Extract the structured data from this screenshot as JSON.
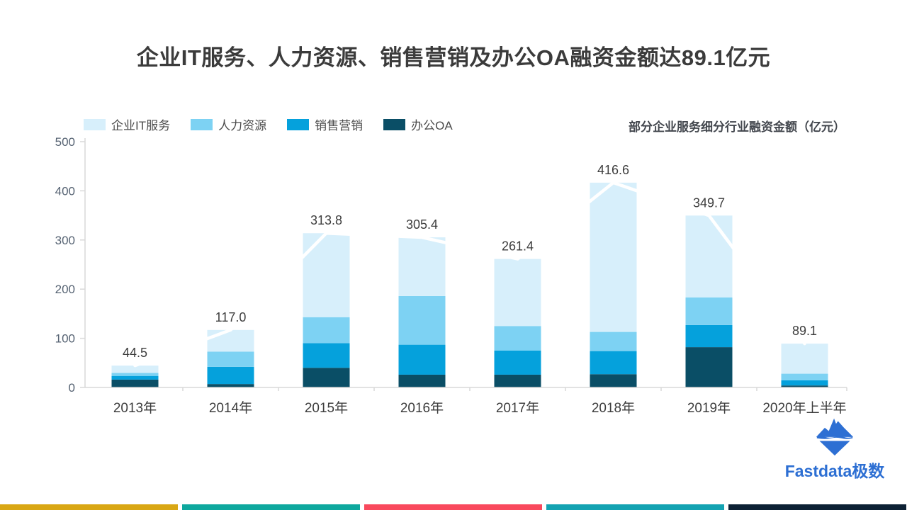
{
  "title": "企业IT服务、人力资源、销售营销及办公OA融资金额达89.1亿元",
  "subtitle": "部分企业服务细分行业融资金额（亿元）",
  "legend": [
    {
      "label": "企业IT服务",
      "color": "#d7effb"
    },
    {
      "label": "人力资源",
      "color": "#7dd2f3"
    },
    {
      "label": "销售营销",
      "color": "#05a1dc"
    },
    {
      "label": "办公OA",
      "color": "#0a4e66"
    }
  ],
  "chart_data": {
    "type": "bar",
    "stacked": true,
    "title": "部分企业服务细分行业融资金额（亿元）",
    "categories": [
      "2013年",
      "2014年",
      "2015年",
      "2016年",
      "2017年",
      "2018年",
      "2019年",
      "2020年上半年"
    ],
    "series": [
      {
        "name": "办公OA",
        "color": "#0a4e66",
        "values": [
          16,
          7,
          40,
          26,
          26,
          27,
          82,
          4
        ]
      },
      {
        "name": "销售营销",
        "color": "#05a1dc",
        "values": [
          7.5,
          35,
          50,
          61,
          49,
          47,
          45,
          10.5
        ]
      },
      {
        "name": "人力资源",
        "color": "#7dd2f3",
        "values": [
          6,
          31,
          53,
          99,
          50,
          39,
          56,
          13.5
        ]
      },
      {
        "name": "企业IT服务",
        "color": "#d7effb",
        "values": [
          15,
          44,
          170.8,
          119.4,
          136.4,
          303.6,
          166.7,
          61.1
        ]
      }
    ],
    "totals": [
      44.5,
      117.0,
      313.8,
      305.4,
      261.4,
      416.6,
      349.7,
      89.1
    ],
    "total_labels": [
      "44.5",
      "117.0",
      "313.8",
      "305.4",
      "261.4",
      "416.6",
      "349.7",
      "89.1"
    ],
    "ylim": [
      0,
      500
    ],
    "yticks": [
      0,
      100,
      200,
      300,
      400,
      500
    ],
    "grid": false,
    "legend_position": "top-left",
    "overlay_trend_line": {
      "color": "#ffffff",
      "connects": "bar-tops"
    },
    "axis_color": "#d9d9d9",
    "ytick_label_color": "#556272",
    "xtick_label_color": "#3d3d3d",
    "value_label_color": "#3d3d3d"
  },
  "logo": {
    "brand": "Fastdata极数",
    "icon": "iceberg-icon",
    "color": "#2d6fd3"
  },
  "footer_stripes": [
    "#d9a714",
    "#0ea89e",
    "#f9495d",
    "#14a3b2",
    "#0d2134"
  ]
}
